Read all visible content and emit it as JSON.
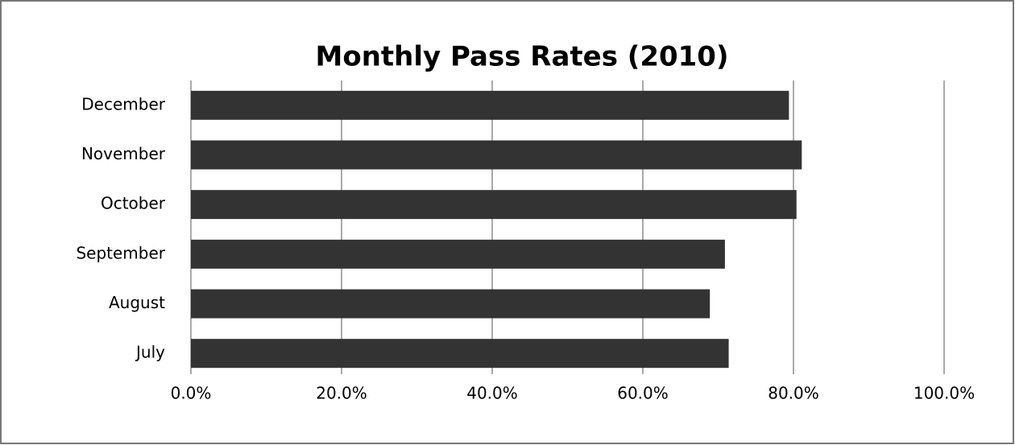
{
  "chart_data": {
    "type": "barh",
    "title": "Monthly Pass Rates (2010)",
    "categories": [
      "July",
      "August",
      "September",
      "October",
      "November",
      "December"
    ],
    "values": [
      71.4,
      68.9,
      70.9,
      80.4,
      81.1,
      79.4
    ],
    "color": "#333333",
    "xlim": [
      0,
      100
    ],
    "xticks": [
      {
        "value": 0,
        "label": "0.0%"
      },
      {
        "value": 20,
        "label": "20.0%"
      },
      {
        "value": 40,
        "label": "40.0%"
      },
      {
        "value": 60,
        "label": "60.0%"
      },
      {
        "value": 80,
        "label": "80.0%"
      },
      {
        "value": 100,
        "label": "100.0%"
      }
    ],
    "grid": true
  }
}
